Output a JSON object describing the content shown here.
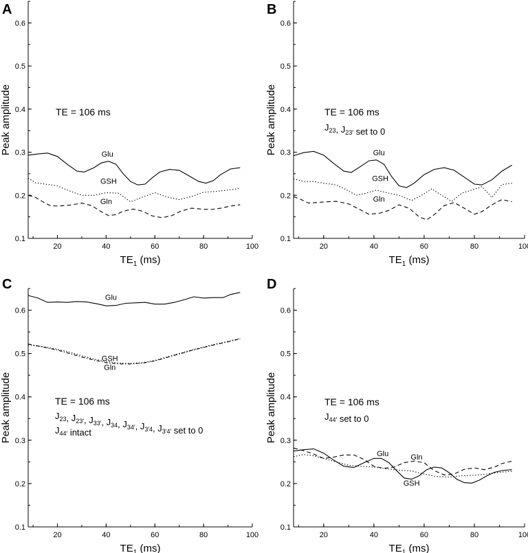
{
  "figure": {
    "axis": {
      "xlabel": "TE",
      "xlabel_sub": "1",
      "xlabel_unit": " (ms)",
      "ylabel": "Peak amplitude",
      "xlim": [
        8,
        100
      ],
      "ylim": [
        0.1,
        0.65
      ],
      "xticks": [
        20,
        40,
        60,
        80,
        100
      ],
      "yticks": [
        0.1,
        0.2,
        0.3,
        0.4,
        0.5,
        0.6
      ]
    }
  },
  "chart_data": [
    {
      "panel": "A",
      "type": "line",
      "annotations": [
        {
          "text": "TE = 106 ms"
        }
      ],
      "series": [
        {
          "name": "Glu",
          "style": "solid",
          "x": [
            8,
            12,
            16,
            20,
            24,
            28,
            31,
            35,
            38,
            41,
            44,
            47,
            50,
            53,
            56,
            59,
            62,
            66,
            70,
            74,
            78,
            81,
            84,
            87,
            91,
            95
          ],
          "y": [
            0.293,
            0.296,
            0.298,
            0.29,
            0.272,
            0.256,
            0.254,
            0.264,
            0.275,
            0.279,
            0.272,
            0.25,
            0.232,
            0.224,
            0.226,
            0.241,
            0.254,
            0.26,
            0.258,
            0.245,
            0.232,
            0.228,
            0.234,
            0.248,
            0.261,
            0.264
          ]
        },
        {
          "name": "GSH",
          "style": "dotted",
          "x": [
            8,
            11,
            15,
            20,
            25,
            30,
            35,
            40,
            45,
            50,
            55,
            60,
            65,
            70,
            75,
            80,
            85,
            90,
            95
          ],
          "y": [
            0.24,
            0.229,
            0.226,
            0.222,
            0.21,
            0.2,
            0.2,
            0.206,
            0.205,
            0.185,
            0.196,
            0.206,
            0.196,
            0.19,
            0.197,
            0.207,
            0.209,
            0.212,
            0.216
          ]
        },
        {
          "name": "Gln",
          "style": "dashed",
          "x": [
            8,
            11,
            14,
            17,
            20,
            25,
            30,
            34,
            38,
            41,
            44,
            47,
            51,
            55,
            59,
            63,
            67,
            71,
            75,
            79,
            83,
            87,
            91,
            95
          ],
          "y": [
            0.2,
            0.195,
            0.185,
            0.176,
            0.175,
            0.177,
            0.182,
            0.176,
            0.162,
            0.153,
            0.155,
            0.163,
            0.168,
            0.163,
            0.152,
            0.148,
            0.153,
            0.164,
            0.17,
            0.168,
            0.167,
            0.17,
            0.175,
            0.178
          ]
        }
      ]
    },
    {
      "panel": "B",
      "type": "line",
      "annotations": [
        {
          "text": "TE = 106 ms"
        },
        {
          "text": "J23, J23′ set to 0"
        }
      ],
      "series": [
        {
          "name": "Glu",
          "style": "solid",
          "x": [
            8,
            12,
            16,
            20,
            24,
            28,
            31,
            35,
            38,
            41,
            44,
            47,
            50,
            53,
            56,
            60,
            64,
            68,
            72,
            76,
            80,
            83,
            87,
            91,
            95
          ],
          "y": [
            0.292,
            0.299,
            0.302,
            0.293,
            0.274,
            0.256,
            0.253,
            0.268,
            0.28,
            0.282,
            0.272,
            0.244,
            0.222,
            0.218,
            0.228,
            0.248,
            0.26,
            0.264,
            0.258,
            0.242,
            0.226,
            0.224,
            0.236,
            0.256,
            0.27
          ]
        },
        {
          "name": "GSH",
          "style": "dotted",
          "x": [
            8,
            12,
            16,
            20,
            25,
            29,
            33,
            37,
            41,
            45,
            50,
            55,
            59,
            63,
            67,
            71,
            75,
            79,
            83,
            87,
            91,
            95
          ],
          "y": [
            0.238,
            0.232,
            0.232,
            0.228,
            0.224,
            0.213,
            0.2,
            0.205,
            0.212,
            0.206,
            0.2,
            0.188,
            0.2,
            0.215,
            0.2,
            0.186,
            0.205,
            0.212,
            0.22,
            0.195,
            0.225,
            0.228
          ]
        },
        {
          "name": "Gln",
          "style": "dashed",
          "x": [
            8,
            11,
            14,
            17,
            21,
            25,
            30,
            34,
            38,
            42,
            46,
            50,
            54,
            58,
            61,
            64,
            68,
            72,
            76,
            80,
            83,
            87,
            91,
            95
          ],
          "y": [
            0.197,
            0.19,
            0.182,
            0.183,
            0.185,
            0.186,
            0.18,
            0.168,
            0.156,
            0.158,
            0.165,
            0.178,
            0.17,
            0.15,
            0.143,
            0.155,
            0.176,
            0.183,
            0.17,
            0.156,
            0.162,
            0.178,
            0.19,
            0.185
          ]
        }
      ]
    },
    {
      "panel": "C",
      "type": "line",
      "annotations": [
        {
          "text": "TE = 106 ms"
        },
        {
          "text": "J23, J23′, J33′, J34, J34′, J3′4, J3′4′ set to 0"
        },
        {
          "text": "J44′ intact"
        }
      ],
      "series": [
        {
          "name": "Glu",
          "style": "solid",
          "x": [
            8,
            12,
            16,
            20,
            24,
            28,
            32,
            36,
            40,
            44,
            48,
            52,
            56,
            60,
            64,
            68,
            72,
            76,
            80,
            84,
            88,
            91,
            95
          ],
          "y": [
            0.634,
            0.628,
            0.618,
            0.619,
            0.618,
            0.62,
            0.619,
            0.615,
            0.61,
            0.611,
            0.616,
            0.617,
            0.618,
            0.614,
            0.614,
            0.618,
            0.624,
            0.631,
            0.628,
            0.629,
            0.629,
            0.636,
            0.641
          ]
        },
        {
          "name": "GSH",
          "style": "dotted",
          "x": [
            8,
            15,
            20,
            25,
            30,
            35,
            40,
            45,
            50,
            55,
            60,
            65,
            70,
            75,
            80,
            85,
            90,
            95
          ],
          "y": [
            0.52,
            0.515,
            0.51,
            0.503,
            0.495,
            0.487,
            0.482,
            0.478,
            0.477,
            0.479,
            0.484,
            0.492,
            0.5,
            0.508,
            0.515,
            0.522,
            0.528,
            0.535
          ]
        },
        {
          "name": "Gln",
          "style": "dashdot",
          "x": [
            8,
            15,
            20,
            25,
            30,
            35,
            40,
            45,
            50,
            55,
            60,
            65,
            70,
            75,
            80,
            85,
            90,
            95
          ],
          "y": [
            0.522,
            0.514,
            0.508,
            0.5,
            0.492,
            0.485,
            0.479,
            0.476,
            0.476,
            0.478,
            0.483,
            0.491,
            0.499,
            0.507,
            0.514,
            0.521,
            0.527,
            0.534
          ]
        }
      ]
    },
    {
      "panel": "D",
      "type": "line",
      "annotations": [
        {
          "text": "TE = 106 ms"
        },
        {
          "text": "J44′ set to 0"
        }
      ],
      "series": [
        {
          "name": "Glu",
          "style": "solid",
          "x": [
            8,
            12,
            16,
            20,
            24,
            28,
            32,
            36,
            40,
            43,
            46,
            49,
            52,
            55,
            58,
            61,
            64,
            67,
            70,
            73,
            76,
            79,
            82,
            85,
            88,
            91,
            95
          ],
          "y": [
            0.275,
            0.278,
            0.28,
            0.27,
            0.254,
            0.24,
            0.237,
            0.248,
            0.258,
            0.258,
            0.248,
            0.23,
            0.213,
            0.21,
            0.218,
            0.232,
            0.238,
            0.236,
            0.225,
            0.21,
            0.202,
            0.201,
            0.208,
            0.218,
            0.226,
            0.23,
            0.232
          ]
        },
        {
          "name": "GSH",
          "style": "dotted",
          "x": [
            8,
            12,
            16,
            20,
            25,
            30,
            35,
            40,
            45,
            50,
            55,
            60,
            65,
            70,
            75,
            80,
            85,
            90,
            95
          ],
          "y": [
            0.262,
            0.267,
            0.264,
            0.258,
            0.25,
            0.242,
            0.24,
            0.238,
            0.234,
            0.231,
            0.229,
            0.222,
            0.216,
            0.215,
            0.218,
            0.219,
            0.222,
            0.226,
            0.228
          ]
        },
        {
          "name": "Gln",
          "style": "dashed",
          "x": [
            8,
            12,
            16,
            20,
            24,
            28,
            32,
            36,
            40,
            44,
            48,
            52,
            56,
            60,
            64,
            68,
            72,
            76,
            80,
            84,
            88,
            91,
            95
          ],
          "y": [
            0.282,
            0.276,
            0.268,
            0.258,
            0.261,
            0.266,
            0.266,
            0.256,
            0.24,
            0.235,
            0.238,
            0.248,
            0.252,
            0.248,
            0.23,
            0.22,
            0.222,
            0.233,
            0.236,
            0.232,
            0.238,
            0.246,
            0.252
          ]
        }
      ]
    }
  ]
}
